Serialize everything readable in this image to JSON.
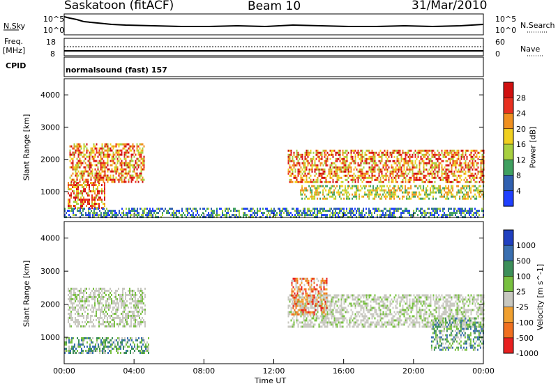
{
  "header": {
    "station": "Saskatoon (fitACF)",
    "beam": "Beam 10",
    "date": "31/Mar/2010"
  },
  "top_panels": {
    "nsky_label": "N.Sky",
    "nsky_top_tick": "10^5",
    "nsky_bottom_tick": "10^0",
    "nsearch_label": "N.Search",
    "nsearch_top_tick": "10^5",
    "nsearch_bottom_tick": "10^0",
    "freq_label_1": "Freq.",
    "freq_label_2": "[MHz]",
    "freq_top_tick": "18",
    "freq_bottom_tick": "8",
    "nave_label": "Nave",
    "nave_top_tick": "60",
    "nave_bottom_tick": "0",
    "cpid_label": "CPID",
    "cpid_value": "normalsound (fast) 157"
  },
  "chart_data": [
    {
      "type": "heatmap",
      "name": "power",
      "ylabel": "Slant Range [km]",
      "yticks": [
        "1000",
        "2000",
        "3000",
        "4000"
      ],
      "ylim": [
        200,
        4500
      ],
      "colorbar_label": "Power [dB]",
      "colorbar_ticks": [
        "4",
        "8",
        "12",
        "16",
        "20",
        "24",
        "28"
      ],
      "colorbar_colors": [
        "#2040ff",
        "#3060b0",
        "#40a060",
        "#a8d040",
        "#f0d020",
        "#f09020",
        "#e83020",
        "#d01010"
      ],
      "regions": [
        {
          "t_start": 0.2,
          "t_end": 2.3,
          "r_start": 500,
          "r_end": 1300,
          "level": "high"
        },
        {
          "t_start": 0.3,
          "t_end": 4.6,
          "r_start": 1300,
          "r_end": 2500,
          "level": "high"
        },
        {
          "t_start": 12.8,
          "t_end": 24.0,
          "r_start": 1300,
          "r_end": 2300,
          "level": "high"
        },
        {
          "t_start": 13.5,
          "t_end": 24.0,
          "r_start": 800,
          "r_end": 1200,
          "level": "medium"
        },
        {
          "t_start": 0.0,
          "t_end": 24.0,
          "r_start": 200,
          "r_end": 500,
          "level": "low"
        }
      ]
    },
    {
      "type": "heatmap",
      "name": "velocity",
      "ylabel": "Slant Range [km]",
      "yticks": [
        "1000",
        "2000",
        "3000",
        "4000"
      ],
      "ylim": [
        200,
        4500
      ],
      "colorbar_label": "Velocity [m s^-1]",
      "colorbar_ticks": [
        "1000",
        "500",
        "100",
        "25",
        "-25",
        "-100",
        "-500",
        "-1000"
      ],
      "colorbar_colors": [
        "#2040c0",
        "#3a6fb0",
        "#3d8f5a",
        "#78c040",
        "#c8c8c0",
        "#f0a030",
        "#f07020",
        "#e82020"
      ],
      "regions": [
        {
          "t_start": 0.2,
          "t_end": 4.6,
          "r_start": 1300,
          "r_end": 2500,
          "level": "ground"
        },
        {
          "t_start": 0.0,
          "t_end": 4.8,
          "r_start": 500,
          "r_end": 1000,
          "level": "positive"
        },
        {
          "t_start": 12.8,
          "t_end": 24.0,
          "r_start": 1300,
          "r_end": 2300,
          "level": "ground"
        },
        {
          "t_start": 21.0,
          "t_end": 24.0,
          "r_start": 600,
          "r_end": 1600,
          "level": "positive"
        },
        {
          "t_start": 13.0,
          "t_end": 15.0,
          "r_start": 1700,
          "r_end": 2800,
          "level": "negative"
        }
      ]
    }
  ],
  "xaxis": {
    "ticks": [
      "00:00",
      "04:00",
      "08:00",
      "12:00",
      "16:00",
      "20:00",
      "00:00"
    ],
    "label": "Time UT"
  }
}
